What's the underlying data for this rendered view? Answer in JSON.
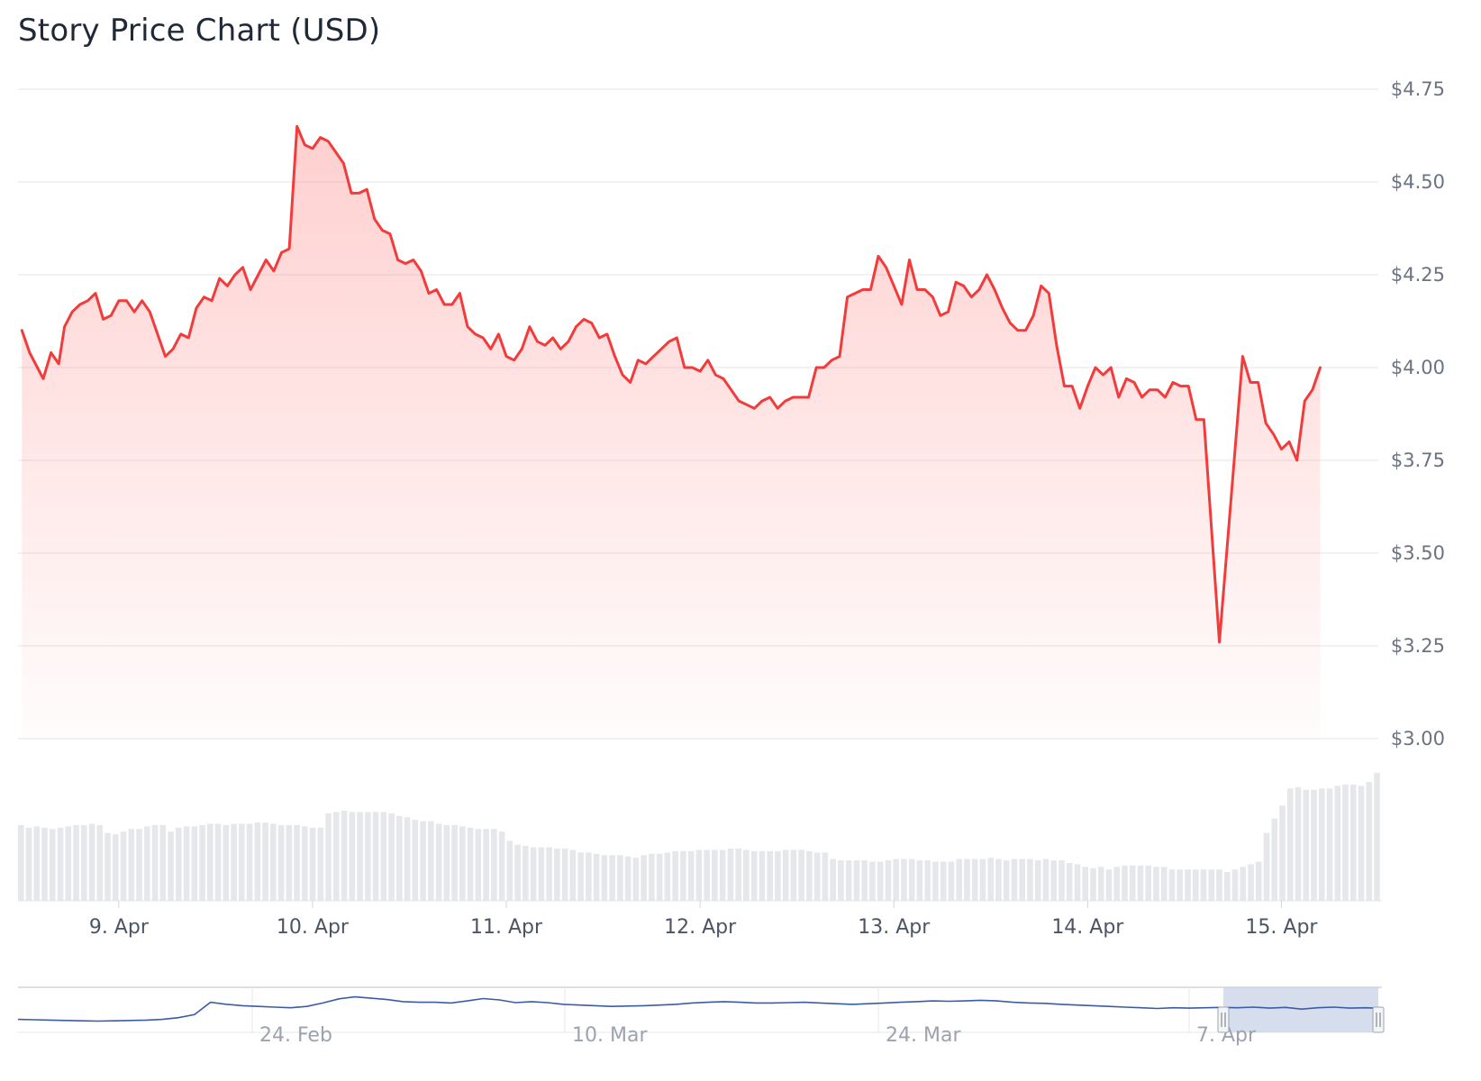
{
  "chart": {
    "title": "Story Price Chart (USD)"
  },
  "chart_data": {
    "type": "line",
    "title": "Story Price Chart (USD)",
    "ylim": [
      3.0,
      4.75
    ],
    "y_ticks": [
      "$3.00",
      "$3.25",
      "$3.50",
      "$3.75",
      "$4.00",
      "$4.25",
      "$4.50",
      "$4.75"
    ],
    "y_tick_values": [
      3.0,
      3.25,
      3.5,
      3.75,
      4.0,
      4.25,
      4.5,
      4.75
    ],
    "x_ticks": [
      "9. Apr",
      "10. Apr",
      "11. Apr",
      "12. Apr",
      "13. Apr",
      "14. Apr",
      "15. Apr"
    ],
    "x_range_days": [
      8.48,
      15.5
    ],
    "grid": true,
    "colors": {
      "line": "#f23b3b",
      "fill": "#ff6b6b",
      "volume": "#e5e7eb",
      "navigator_line": "#3b5ba9",
      "navigator_mask": "#c5d0e6"
    },
    "price": [
      [
        8.5,
        4.1
      ],
      [
        8.54,
        4.04
      ],
      [
        8.58,
        4.0
      ],
      [
        8.61,
        3.97
      ],
      [
        8.65,
        4.04
      ],
      [
        8.69,
        4.01
      ],
      [
        8.72,
        4.11
      ],
      [
        8.76,
        4.15
      ],
      [
        8.8,
        4.17
      ],
      [
        8.84,
        4.18
      ],
      [
        8.88,
        4.2
      ],
      [
        8.92,
        4.13
      ],
      [
        8.96,
        4.14
      ],
      [
        9.0,
        4.18
      ],
      [
        9.04,
        4.18
      ],
      [
        9.08,
        4.15
      ],
      [
        9.12,
        4.18
      ],
      [
        9.16,
        4.15
      ],
      [
        9.2,
        4.09
      ],
      [
        9.24,
        4.03
      ],
      [
        9.28,
        4.05
      ],
      [
        9.32,
        4.09
      ],
      [
        9.36,
        4.08
      ],
      [
        9.4,
        4.16
      ],
      [
        9.44,
        4.19
      ],
      [
        9.48,
        4.18
      ],
      [
        9.52,
        4.24
      ],
      [
        9.56,
        4.22
      ],
      [
        9.6,
        4.25
      ],
      [
        9.64,
        4.27
      ],
      [
        9.68,
        4.21
      ],
      [
        9.72,
        4.25
      ],
      [
        9.76,
        4.29
      ],
      [
        9.8,
        4.26
      ],
      [
        9.84,
        4.31
      ],
      [
        9.88,
        4.32
      ],
      [
        9.92,
        4.65
      ],
      [
        9.96,
        4.6
      ],
      [
        10.0,
        4.59
      ],
      [
        10.04,
        4.62
      ],
      [
        10.08,
        4.61
      ],
      [
        10.12,
        4.58
      ],
      [
        10.16,
        4.55
      ],
      [
        10.2,
        4.47
      ],
      [
        10.24,
        4.47
      ],
      [
        10.28,
        4.48
      ],
      [
        10.32,
        4.4
      ],
      [
        10.36,
        4.37
      ],
      [
        10.4,
        4.36
      ],
      [
        10.44,
        4.29
      ],
      [
        10.48,
        4.28
      ],
      [
        10.52,
        4.29
      ],
      [
        10.56,
        4.26
      ],
      [
        10.6,
        4.2
      ],
      [
        10.64,
        4.21
      ],
      [
        10.68,
        4.17
      ],
      [
        10.72,
        4.17
      ],
      [
        10.76,
        4.2
      ],
      [
        10.8,
        4.11
      ],
      [
        10.84,
        4.09
      ],
      [
        10.88,
        4.08
      ],
      [
        10.92,
        4.05
      ],
      [
        10.96,
        4.09
      ],
      [
        11.0,
        4.03
      ],
      [
        11.04,
        4.02
      ],
      [
        11.08,
        4.05
      ],
      [
        11.12,
        4.11
      ],
      [
        11.16,
        4.07
      ],
      [
        11.2,
        4.06
      ],
      [
        11.24,
        4.08
      ],
      [
        11.28,
        4.05
      ],
      [
        11.32,
        4.07
      ],
      [
        11.36,
        4.11
      ],
      [
        11.4,
        4.13
      ],
      [
        11.44,
        4.12
      ],
      [
        11.48,
        4.08
      ],
      [
        11.52,
        4.09
      ],
      [
        11.56,
        4.03
      ],
      [
        11.6,
        3.98
      ],
      [
        11.64,
        3.96
      ],
      [
        11.68,
        4.02
      ],
      [
        11.72,
        4.01
      ],
      [
        11.76,
        4.03
      ],
      [
        11.8,
        4.05
      ],
      [
        11.84,
        4.07
      ],
      [
        11.88,
        4.08
      ],
      [
        11.92,
        4.0
      ],
      [
        11.96,
        4.0
      ],
      [
        12.0,
        3.99
      ],
      [
        12.04,
        4.02
      ],
      [
        12.08,
        3.98
      ],
      [
        12.12,
        3.97
      ],
      [
        12.16,
        3.94
      ],
      [
        12.2,
        3.91
      ],
      [
        12.24,
        3.9
      ],
      [
        12.28,
        3.89
      ],
      [
        12.32,
        3.91
      ],
      [
        12.36,
        3.92
      ],
      [
        12.4,
        3.89
      ],
      [
        12.44,
        3.91
      ],
      [
        12.48,
        3.92
      ],
      [
        12.52,
        3.92
      ],
      [
        12.56,
        3.92
      ],
      [
        12.6,
        4.0
      ],
      [
        12.64,
        4.0
      ],
      [
        12.68,
        4.02
      ],
      [
        12.72,
        4.03
      ],
      [
        12.76,
        4.19
      ],
      [
        12.8,
        4.2
      ],
      [
        12.84,
        4.21
      ],
      [
        12.88,
        4.21
      ],
      [
        12.92,
        4.3
      ],
      [
        12.96,
        4.27
      ],
      [
        13.0,
        4.22
      ],
      [
        13.04,
        4.17
      ],
      [
        13.08,
        4.29
      ],
      [
        13.12,
        4.21
      ],
      [
        13.16,
        4.21
      ],
      [
        13.2,
        4.19
      ],
      [
        13.24,
        4.14
      ],
      [
        13.28,
        4.15
      ],
      [
        13.32,
        4.23
      ],
      [
        13.36,
        4.22
      ],
      [
        13.4,
        4.19
      ],
      [
        13.44,
        4.21
      ],
      [
        13.48,
        4.25
      ],
      [
        13.52,
        4.21
      ],
      [
        13.56,
        4.16
      ],
      [
        13.6,
        4.12
      ],
      [
        13.64,
        4.1
      ],
      [
        13.68,
        4.1
      ],
      [
        13.72,
        4.14
      ],
      [
        13.76,
        4.22
      ],
      [
        13.8,
        4.2
      ],
      [
        13.84,
        4.06
      ],
      [
        13.88,
        3.95
      ],
      [
        13.92,
        3.95
      ],
      [
        13.96,
        3.89
      ],
      [
        14.0,
        3.95
      ],
      [
        14.04,
        4.0
      ],
      [
        14.08,
        3.98
      ],
      [
        14.12,
        4.0
      ],
      [
        14.16,
        3.92
      ],
      [
        14.2,
        3.97
      ],
      [
        14.24,
        3.96
      ],
      [
        14.28,
        3.92
      ],
      [
        14.32,
        3.94
      ],
      [
        14.36,
        3.94
      ],
      [
        14.4,
        3.92
      ],
      [
        14.44,
        3.96
      ],
      [
        14.48,
        3.95
      ],
      [
        14.52,
        3.95
      ],
      [
        14.56,
        3.86
      ],
      [
        14.6,
        3.86
      ],
      [
        14.68,
        3.26
      ],
      [
        14.8,
        4.03
      ],
      [
        14.84,
        3.96
      ],
      [
        14.88,
        3.96
      ],
      [
        14.92,
        3.85
      ],
      [
        14.96,
        3.82
      ],
      [
        15.0,
        3.78
      ],
      [
        15.04,
        3.8
      ],
      [
        15.08,
        3.75
      ],
      [
        15.12,
        3.91
      ],
      [
        15.16,
        3.94
      ],
      [
        15.2,
        4.0
      ]
    ],
    "volume": [
      0.58,
      0.56,
      0.57,
      0.56,
      0.55,
      0.56,
      0.57,
      0.58,
      0.58,
      0.59,
      0.58,
      0.52,
      0.51,
      0.53,
      0.55,
      0.55,
      0.57,
      0.58,
      0.58,
      0.53,
      0.56,
      0.57,
      0.57,
      0.58,
      0.59,
      0.59,
      0.58,
      0.59,
      0.59,
      0.59,
      0.6,
      0.6,
      0.59,
      0.58,
      0.58,
      0.58,
      0.57,
      0.56,
      0.56,
      0.67,
      0.68,
      0.69,
      0.68,
      0.68,
      0.68,
      0.68,
      0.68,
      0.67,
      0.65,
      0.64,
      0.62,
      0.61,
      0.61,
      0.59,
      0.58,
      0.58,
      0.57,
      0.56,
      0.55,
      0.55,
      0.55,
      0.53,
      0.46,
      0.43,
      0.42,
      0.41,
      0.41,
      0.41,
      0.4,
      0.4,
      0.39,
      0.37,
      0.37,
      0.36,
      0.35,
      0.35,
      0.35,
      0.34,
      0.33,
      0.35,
      0.36,
      0.36,
      0.37,
      0.38,
      0.38,
      0.38,
      0.39,
      0.39,
      0.39,
      0.39,
      0.4,
      0.4,
      0.39,
      0.38,
      0.38,
      0.38,
      0.38,
      0.39,
      0.39,
      0.39,
      0.38,
      0.37,
      0.37,
      0.32,
      0.31,
      0.31,
      0.31,
      0.31,
      0.3,
      0.3,
      0.31,
      0.32,
      0.32,
      0.32,
      0.31,
      0.31,
      0.3,
      0.3,
      0.3,
      0.32,
      0.32,
      0.32,
      0.32,
      0.33,
      0.32,
      0.31,
      0.32,
      0.32,
      0.32,
      0.31,
      0.32,
      0.31,
      0.31,
      0.29,
      0.28,
      0.26,
      0.25,
      0.26,
      0.24,
      0.26,
      0.27,
      0.27,
      0.27,
      0.27,
      0.26,
      0.26,
      0.24,
      0.24,
      0.24,
      0.24,
      0.24,
      0.24,
      0.24,
      0.22,
      0.24,
      0.26,
      0.28,
      0.3,
      0.52,
      0.63,
      0.73,
      0.86,
      0.87,
      0.85,
      0.85,
      0.86,
      0.86,
      0.88,
      0.89,
      0.89,
      0.88,
      0.91,
      0.98
    ],
    "navigator": {
      "ticks": [
        "24. Feb",
        "10. Mar",
        "24. Mar",
        "7. Apr"
      ],
      "selected_range": [
        "8. Apr",
        "15. Apr"
      ],
      "trend": [
        0.22,
        0.21,
        0.2,
        0.19,
        0.18,
        0.17,
        0.18,
        0.19,
        0.2,
        0.22,
        0.27,
        0.36,
        0.72,
        0.66,
        0.62,
        0.6,
        0.58,
        0.56,
        0.6,
        0.7,
        0.82,
        0.88,
        0.84,
        0.8,
        0.74,
        0.72,
        0.72,
        0.7,
        0.76,
        0.83,
        0.79,
        0.71,
        0.74,
        0.71,
        0.66,
        0.64,
        0.62,
        0.6,
        0.61,
        0.62,
        0.64,
        0.66,
        0.7,
        0.72,
        0.74,
        0.72,
        0.7,
        0.7,
        0.71,
        0.72,
        0.7,
        0.68,
        0.66,
        0.68,
        0.7,
        0.72,
        0.74,
        0.76,
        0.75,
        0.76,
        0.78,
        0.76,
        0.72,
        0.7,
        0.69,
        0.66,
        0.64,
        0.62,
        0.6,
        0.58,
        0.56,
        0.54,
        0.56,
        0.55,
        0.56,
        0.57,
        0.56,
        0.58,
        0.55,
        0.57,
        0.52,
        0.56,
        0.58,
        0.55,
        0.56,
        0.54
      ]
    }
  }
}
